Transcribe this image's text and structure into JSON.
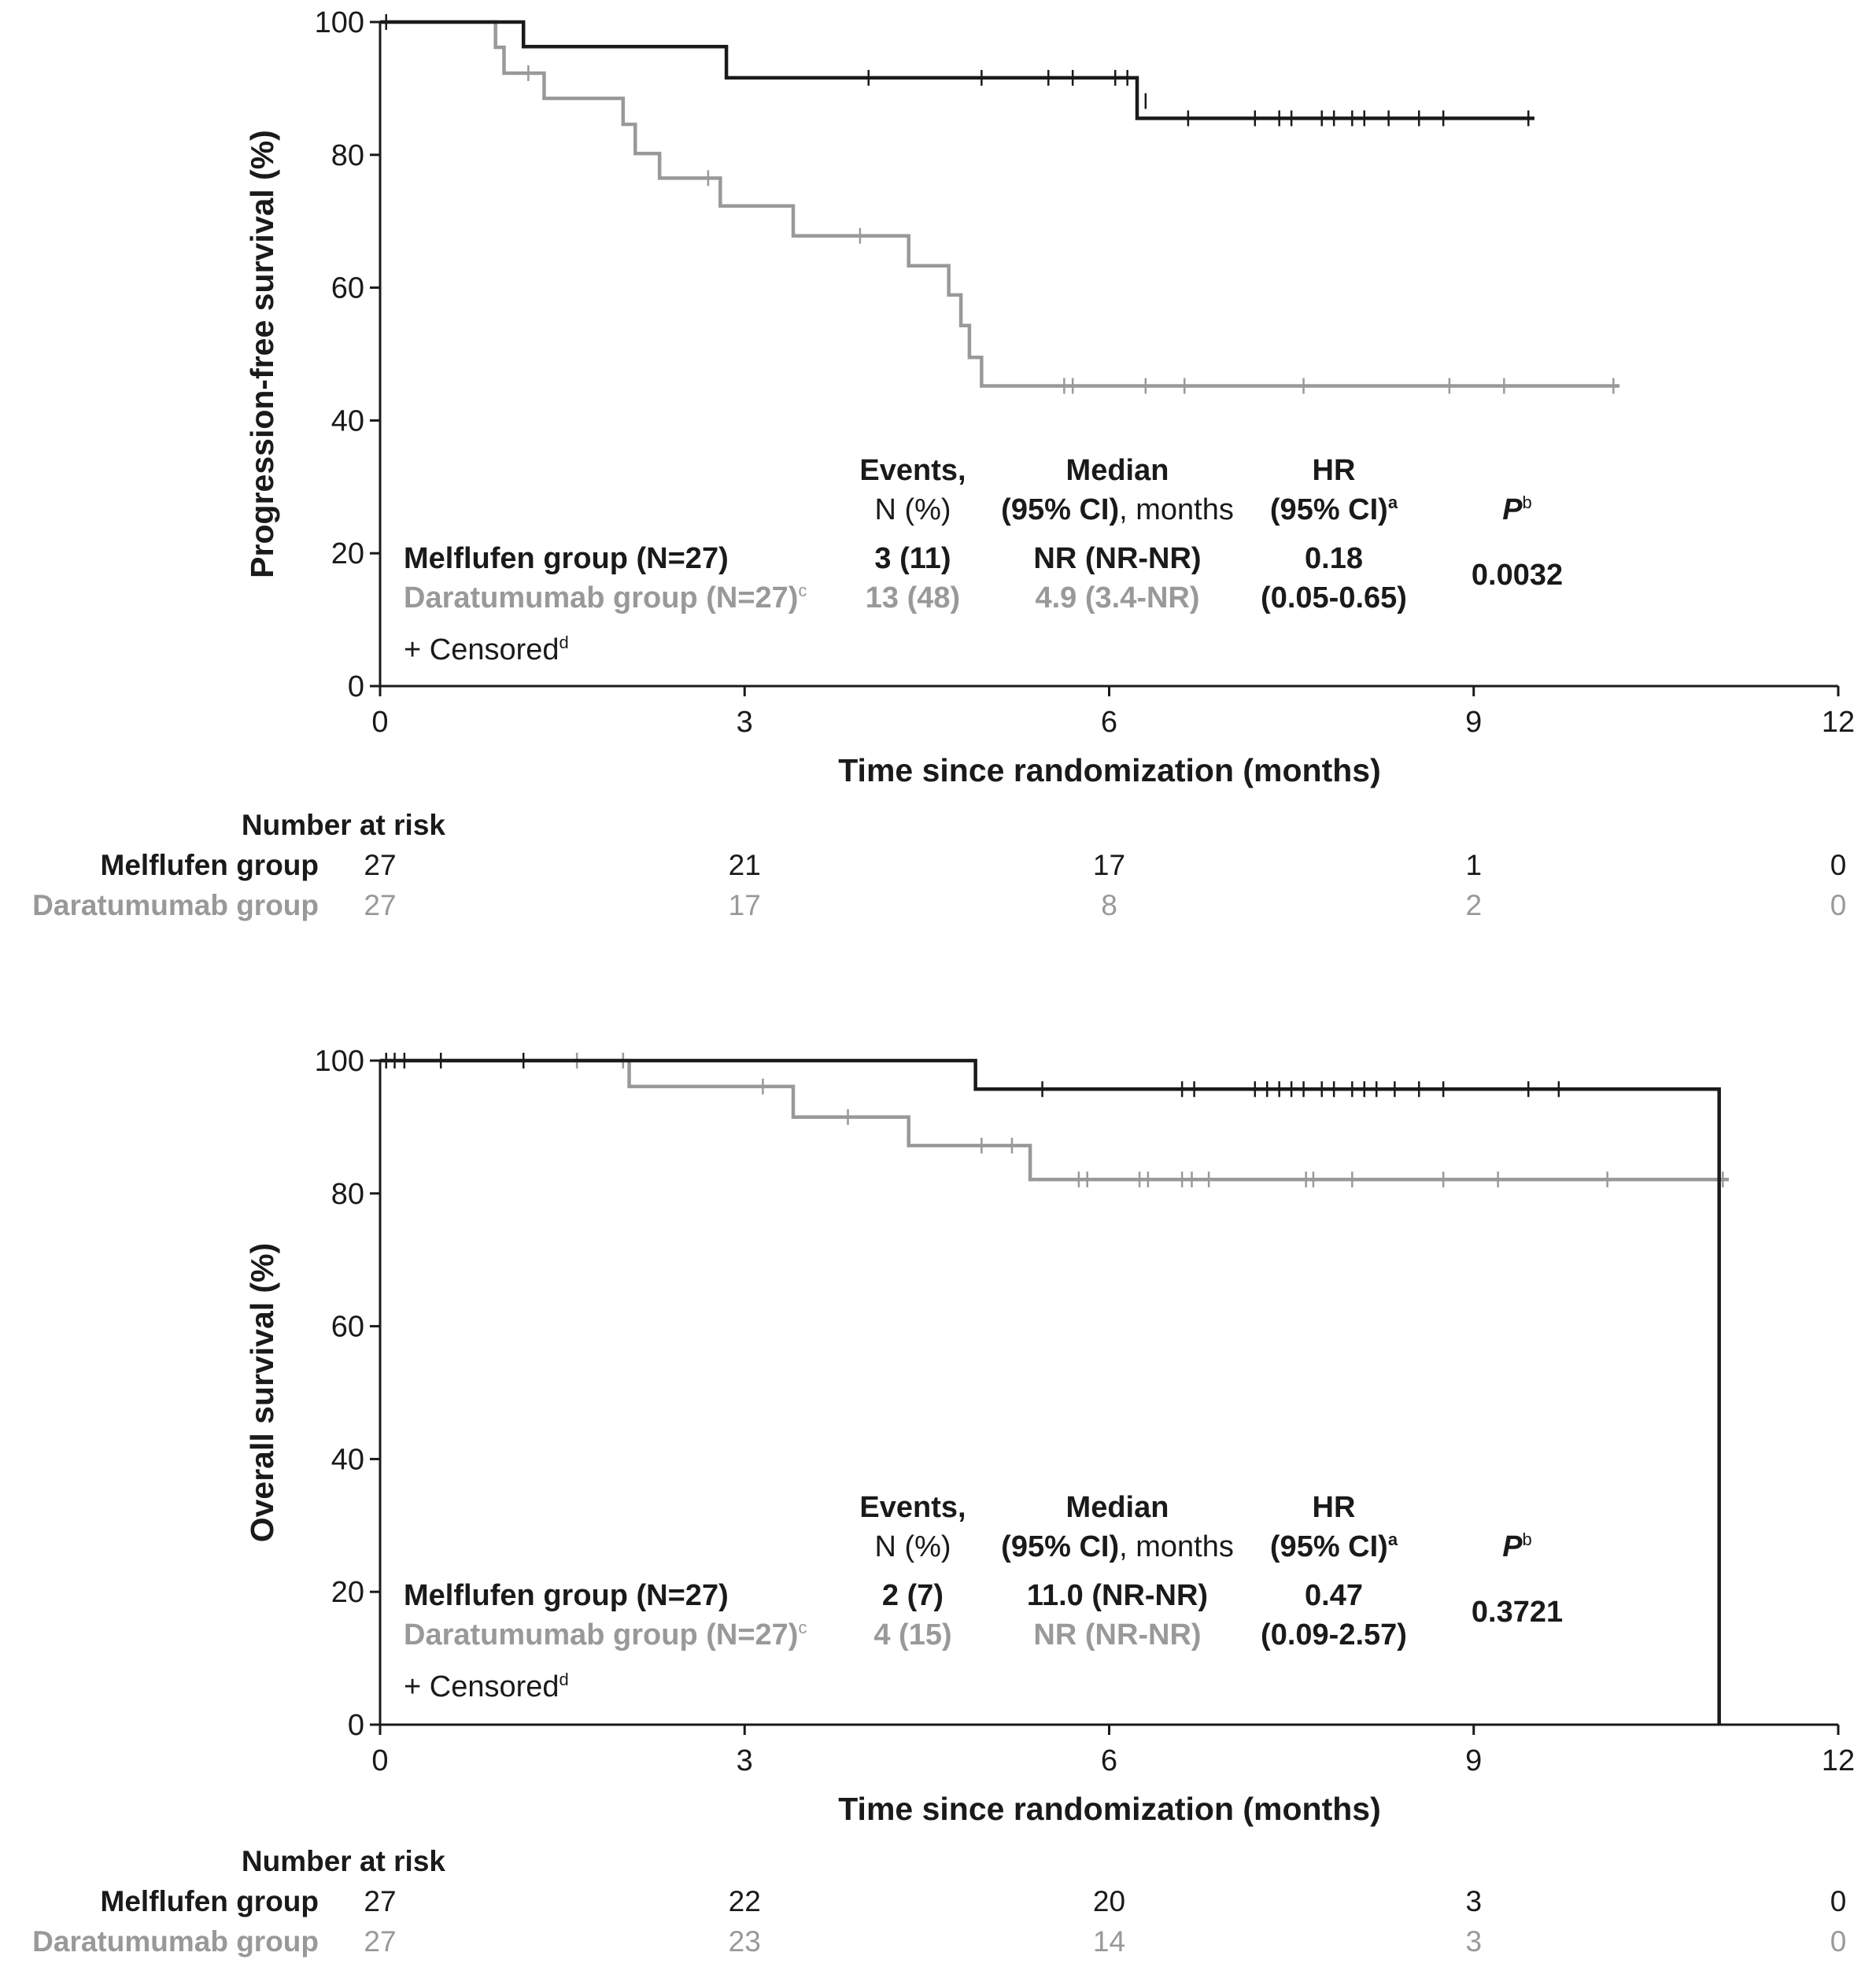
{
  "chart_data": [
    {
      "type": "line",
      "id": "pfs",
      "title": "",
      "xlabel": "Time since randomization (months)",
      "ylabel": "Progression-free survival (%)",
      "xlim": [
        0,
        12
      ],
      "ylim": [
        0,
        100
      ],
      "xticks": [
        0,
        3,
        6,
        9,
        12
      ],
      "yticks": [
        0,
        20,
        40,
        60,
        80,
        100
      ],
      "series": [
        {
          "name": "Melflufen group",
          "color": "#1a1a1a",
          "steps": [
            [
              0,
              100
            ],
            [
              1.18,
              96.3
            ],
            [
              2.85,
              91.6
            ],
            [
              6.23,
              85.5
            ],
            [
              9.5,
              85.5
            ]
          ],
          "censored": [
            [
              0.05,
              100
            ],
            [
              4.02,
              91.6
            ],
            [
              4.95,
              91.6
            ],
            [
              5.5,
              91.6
            ],
            [
              5.7,
              91.6
            ],
            [
              6.05,
              91.6
            ],
            [
              6.15,
              91.6
            ],
            [
              6.3,
              88.1
            ],
            [
              6.65,
              85.5
            ],
            [
              7.2,
              85.5
            ],
            [
              7.4,
              85.5
            ],
            [
              7.5,
              85.5
            ],
            [
              7.75,
              85.5
            ],
            [
              7.85,
              85.5
            ],
            [
              8.0,
              85.5
            ],
            [
              8.1,
              85.5
            ],
            [
              8.3,
              85.5
            ],
            [
              8.55,
              85.5
            ],
            [
              8.75,
              85.5
            ],
            [
              9.45,
              85.5
            ]
          ]
        },
        {
          "name": "Daratumumab group",
          "color": "#999999",
          "steps": [
            [
              0,
              100
            ],
            [
              0.95,
              96.2
            ],
            [
              1.02,
              92.3
            ],
            [
              1.35,
              88.5
            ],
            [
              2.0,
              84.6
            ],
            [
              2.1,
              80.2
            ],
            [
              2.3,
              76.5
            ],
            [
              2.8,
              72.3
            ],
            [
              3.4,
              67.8
            ],
            [
              4.35,
              63.3
            ],
            [
              4.68,
              58.9
            ],
            [
              4.78,
              54.3
            ],
            [
              4.85,
              49.5
            ],
            [
              4.95,
              45.2
            ],
            [
              10.2,
              45.2
            ]
          ],
          "censored": [
            [
              1.22,
              92.3
            ],
            [
              2.7,
              76.5
            ],
            [
              3.95,
              67.8
            ],
            [
              5.63,
              45.2
            ],
            [
              5.7,
              45.2
            ],
            [
              6.3,
              45.2
            ],
            [
              6.62,
              45.2
            ],
            [
              7.6,
              45.2
            ],
            [
              8.8,
              45.2
            ],
            [
              9.25,
              45.2
            ],
            [
              10.15,
              45.2
            ]
          ]
        }
      ],
      "legend": {
        "censored_label": "+ Censored",
        "censored_sup": "d"
      },
      "stats_table": {
        "col_events": [
          "Events,",
          "N (%)"
        ],
        "col_median": [
          "Median",
          "(95% CI)",
          ", months"
        ],
        "col_hr": [
          "HR",
          "(95% CI)",
          "a"
        ],
        "col_p": [
          "P",
          "b"
        ],
        "rows": [
          {
            "group": "Melflufen group (N=27)",
            "sup": "",
            "events": "3 (11)",
            "median": "NR (NR-NR)",
            "hr": "0.18",
            "color": "#1a1a1a"
          },
          {
            "group": "Daratumumab group (N=27)",
            "sup": "c",
            "events": "13 (48)",
            "median": "4.9 (3.4-NR)",
            "hr": "(0.05-0.65)",
            "color": "#999999"
          }
        ],
        "p_value": "0.0032"
      },
      "number_at_risk": {
        "label": "Number at risk",
        "times": [
          0,
          3,
          6,
          9,
          12
        ],
        "rows": [
          {
            "group": "Melflufen group",
            "values": [
              "27",
              "21",
              "17",
              "1",
              "0"
            ],
            "color": "#1a1a1a"
          },
          {
            "group": "Daratumumab group",
            "values": [
              "27",
              "17",
              "8",
              "2",
              "0"
            ],
            "color": "#999999"
          }
        ]
      }
    },
    {
      "type": "line",
      "id": "os",
      "title": "",
      "xlabel": "Time since randomization (months)",
      "ylabel": "Overall survival (%)",
      "xlim": [
        0,
        12
      ],
      "ylim": [
        0,
        100
      ],
      "xticks": [
        0,
        3,
        6,
        9,
        12
      ],
      "yticks": [
        0,
        20,
        40,
        60,
        80,
        100
      ],
      "series": [
        {
          "name": "Melflufen group",
          "color": "#1a1a1a",
          "steps": [
            [
              0,
              100
            ],
            [
              4.9,
              95.7
            ],
            [
              11.02,
              0
            ]
          ],
          "censored": [
            [
              0.05,
              100
            ],
            [
              0.12,
              100
            ],
            [
              0.2,
              100
            ],
            [
              0.5,
              100
            ],
            [
              1.18,
              100
            ],
            [
              5.45,
              95.7
            ],
            [
              6.6,
              95.7
            ],
            [
              6.7,
              95.7
            ],
            [
              7.2,
              95.7
            ],
            [
              7.3,
              95.7
            ],
            [
              7.4,
              95.7
            ],
            [
              7.5,
              95.7
            ],
            [
              7.6,
              95.7
            ],
            [
              7.75,
              95.7
            ],
            [
              7.85,
              95.7
            ],
            [
              8.0,
              95.7
            ],
            [
              8.1,
              95.7
            ],
            [
              8.2,
              95.7
            ],
            [
              8.35,
              95.7
            ],
            [
              8.55,
              95.7
            ],
            [
              8.75,
              95.7
            ],
            [
              9.45,
              95.7
            ],
            [
              9.7,
              95.7
            ]
          ]
        },
        {
          "name": "Daratumumab group",
          "color": "#999999",
          "steps": [
            [
              0,
              100
            ],
            [
              2.05,
              96.1
            ],
            [
              3.4,
              91.5
            ],
            [
              4.35,
              87.2
            ],
            [
              5.35,
              82.1
            ],
            [
              11.1,
              82.1
            ]
          ],
          "censored": [
            [
              1.62,
              100
            ],
            [
              2.0,
              100
            ],
            [
              3.15,
              96.1
            ],
            [
              3.85,
              91.5
            ],
            [
              4.95,
              87.2
            ],
            [
              5.2,
              87.2
            ],
            [
              5.75,
              82.1
            ],
            [
              5.82,
              82.1
            ],
            [
              6.25,
              82.1
            ],
            [
              6.32,
              82.1
            ],
            [
              6.6,
              82.1
            ],
            [
              6.68,
              82.1
            ],
            [
              6.82,
              82.1
            ],
            [
              7.62,
              82.1
            ],
            [
              7.68,
              82.1
            ],
            [
              8.0,
              82.1
            ],
            [
              8.75,
              82.1
            ],
            [
              9.2,
              82.1
            ],
            [
              10.1,
              82.1
            ],
            [
              11.05,
              82.1
            ]
          ]
        }
      ],
      "legend": {
        "censored_label": "+ Censored",
        "censored_sup": "d"
      },
      "stats_table": {
        "col_events": [
          "Events,",
          "N (%)"
        ],
        "col_median": [
          "Median",
          "(95% CI)",
          ", months"
        ],
        "col_hr": [
          "HR",
          "(95% CI)",
          "a"
        ],
        "col_p": [
          "P",
          "b"
        ],
        "rows": [
          {
            "group": "Melflufen group (N=27)",
            "sup": "",
            "events": "2 (7)",
            "median": "11.0 (NR-NR)",
            "hr": "0.47",
            "color": "#1a1a1a"
          },
          {
            "group": "Daratumumab group (N=27)",
            "sup": "c",
            "events": "4 (15)",
            "median": "NR (NR-NR)",
            "hr": "(0.09-2.57)",
            "color": "#999999"
          }
        ],
        "p_value": "0.3721"
      },
      "number_at_risk": {
        "label": "Number at risk",
        "times": [
          0,
          3,
          6,
          9,
          12
        ],
        "rows": [
          {
            "group": "Melflufen group",
            "values": [
              "27",
              "22",
              "20",
              "3",
              "0"
            ],
            "color": "#1a1a1a"
          },
          {
            "group": "Daratumumab group",
            "values": [
              "27",
              "23",
              "14",
              "3",
              "0"
            ],
            "color": "#999999"
          }
        ]
      }
    }
  ]
}
